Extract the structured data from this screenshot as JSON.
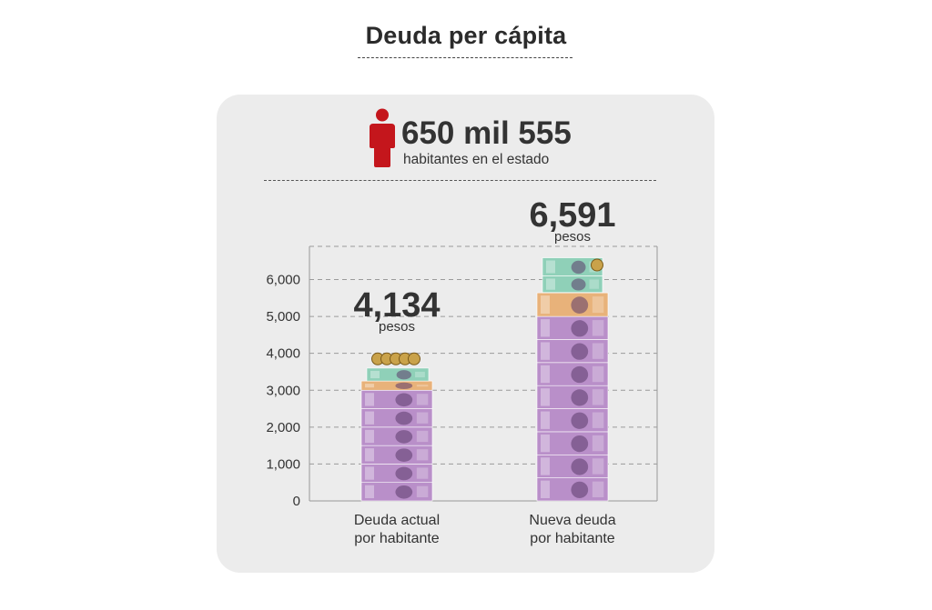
{
  "title": "Deuda per cápita",
  "population": {
    "value": "650 mil 555",
    "label": "habitantes en el estado",
    "icon": "person-icon",
    "icon_color": "#c4161c"
  },
  "colors": {
    "background": "#ffffff",
    "card": "#ececec",
    "banknote_1000": "#b98fc9",
    "banknote_500": "#e8b27a",
    "banknote_200": "#8fd0b8",
    "banknote_100": "#e06a6a",
    "coin": "#c9a24a"
  },
  "chart_data": {
    "type": "bar",
    "categories": [
      "Deuda actual\npor habitante",
      "Nueva deuda\npor habitante"
    ],
    "values": [
      4134,
      6591
    ],
    "value_labels": [
      "4,134",
      "6,591"
    ],
    "value_unit": "pesos",
    "y_ticks": [
      0,
      1000,
      2000,
      3000,
      4000,
      5000,
      6000
    ],
    "y_tick_labels": [
      "0",
      "1,000",
      "2,000",
      "3,000",
      "4,000",
      "5,000",
      "6,000"
    ],
    "ylim": [
      0,
      6900
    ],
    "grid": true,
    "bar_style": "stacked banknotes"
  }
}
